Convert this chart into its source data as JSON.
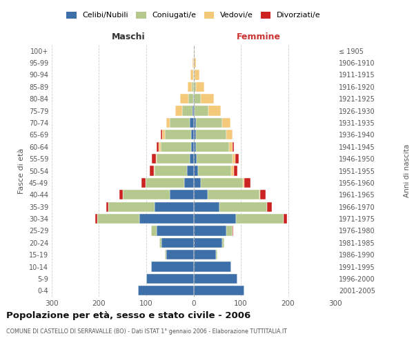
{
  "age_groups": [
    "0-4",
    "5-9",
    "10-14",
    "15-19",
    "20-24",
    "25-29",
    "30-34",
    "35-39",
    "40-44",
    "45-49",
    "50-54",
    "55-59",
    "60-64",
    "65-69",
    "70-74",
    "75-79",
    "80-84",
    "85-89",
    "90-94",
    "95-99",
    "100+"
  ],
  "birth_years": [
    "2001-2005",
    "1996-2000",
    "1991-1995",
    "1986-1990",
    "1981-1985",
    "1976-1980",
    "1971-1975",
    "1966-1970",
    "1961-1965",
    "1956-1960",
    "1951-1955",
    "1946-1950",
    "1941-1945",
    "1936-1940",
    "1931-1935",
    "1926-1930",
    "1921-1925",
    "1916-1920",
    "1911-1915",
    "1906-1910",
    "≤ 1905"
  ],
  "colors": {
    "celibe": "#3d6fa8",
    "coniugato": "#b5c98e",
    "vedovo": "#f5c97a",
    "divorziato": "#cc2222"
  },
  "m_cel": [
    118,
    100,
    90,
    58,
    68,
    78,
    115,
    82,
    50,
    20,
    14,
    8,
    5,
    5,
    8,
    2,
    1,
    0,
    0,
    0,
    0
  ],
  "m_con": [
    0,
    0,
    0,
    2,
    4,
    12,
    88,
    98,
    100,
    82,
    68,
    70,
    65,
    55,
    42,
    22,
    10,
    3,
    1,
    0,
    0
  ],
  "m_ved": [
    0,
    0,
    0,
    0,
    0,
    0,
    0,
    0,
    0,
    0,
    2,
    2,
    3,
    6,
    8,
    14,
    17,
    9,
    5,
    2,
    0
  ],
  "m_div": [
    0,
    0,
    0,
    0,
    0,
    0,
    5,
    5,
    7,
    8,
    8,
    9,
    5,
    3,
    0,
    0,
    0,
    0,
    0,
    0,
    0
  ],
  "f_nub": [
    108,
    92,
    80,
    48,
    60,
    70,
    90,
    55,
    30,
    15,
    10,
    7,
    5,
    5,
    5,
    2,
    0,
    0,
    0,
    0,
    0
  ],
  "f_con": [
    0,
    0,
    0,
    2,
    5,
    12,
    100,
    100,
    110,
    90,
    70,
    75,
    70,
    65,
    55,
    30,
    15,
    5,
    2,
    0,
    0
  ],
  "f_ved": [
    0,
    0,
    0,
    0,
    0,
    0,
    0,
    0,
    1,
    3,
    5,
    6,
    8,
    12,
    18,
    25,
    28,
    18,
    10,
    5,
    2
  ],
  "f_div": [
    0,
    0,
    0,
    0,
    0,
    2,
    8,
    10,
    12,
    12,
    8,
    7,
    3,
    0,
    0,
    0,
    0,
    0,
    0,
    0,
    0
  ],
  "xlim": 300,
  "title": "Popolazione per età, sesso e stato civile - 2006",
  "subtitle": "COMUNE DI CASTELLO DI SERRAVALLE (BO) - Dati ISTAT 1° gennaio 2006 - Elaborazione TUTTITALIA.IT",
  "ylabel": "Fasce di età",
  "ylabel_right": "Anni di nascita",
  "xlabel_left": "Maschi",
  "xlabel_right": "Femmine",
  "bg_color": "#ffffff",
  "grid_color": "#cccccc",
  "legend_labels": [
    "Celibi/Nubili",
    "Coniugati/e",
    "Vedovi/e",
    "Divorziati/e"
  ]
}
